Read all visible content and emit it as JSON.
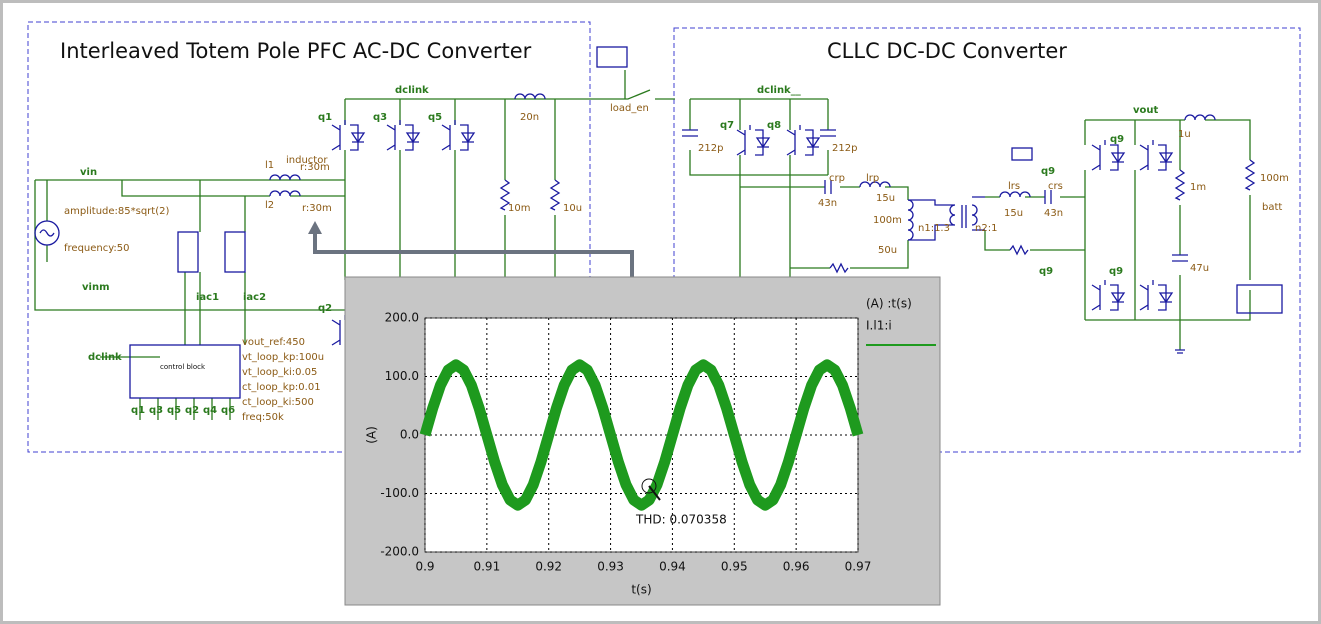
{
  "schematic": {
    "left_title": "Interleaved Totem Pole PFC AC-DC Converter",
    "right_title": "CLLC DC-DC Converter",
    "labels": [
      "dclink",
      "q1",
      "q3",
      "q5",
      "20n",
      "load_en",
      "l1",
      "inductor",
      "r:30m",
      "l2",
      "r:30m",
      "vin",
      "amplitude:85*sqrt(2)",
      "frequency:50",
      "vinm",
      "iac1",
      "iac2",
      "10m",
      "10u",
      "q2",
      "dclink",
      "vout_ref:450",
      "vt_loop_kp:100u",
      "vt_loop_ki:0.05",
      "ct_loop_kp:0.01",
      "ct_loop_ki:500",
      "freq:50k",
      "q1",
      "q3",
      "q5",
      "q2",
      "q4",
      "q6",
      "control block",
      "dclink__",
      "q7",
      "q8",
      "212p",
      "212p",
      "crp",
      "lrp",
      "43n",
      "15u",
      "100m",
      "50u",
      "n1:1.3",
      "n2:1",
      "lrs",
      "crs",
      "15u",
      "43n",
      "q9",
      "q9",
      "q9",
      "q9",
      "vout",
      "1u",
      "1m",
      "100m",
      "batt",
      "47u"
    ]
  },
  "chart_data": {
    "type": "line",
    "legend_title": "(A) :t(s)",
    "xlabel": "t(s)",
    "ylabel": "(A)",
    "annotation": "THD: 0.070358",
    "x": [
      0.9,
      0.90125,
      0.9025,
      0.90375,
      0.905,
      0.90625,
      0.9075,
      0.90875,
      0.91,
      0.91125,
      0.9125,
      0.91375,
      0.915,
      0.91625,
      0.9175,
      0.91875,
      0.92,
      0.92125,
      0.9225,
      0.92375,
      0.925,
      0.92625,
      0.9275,
      0.92875,
      0.93,
      0.93125,
      0.9325,
      0.93375,
      0.935,
      0.93625,
      0.9375,
      0.93875,
      0.94,
      0.94125,
      0.9425,
      0.94375,
      0.945,
      0.94625,
      0.9475,
      0.94875,
      0.95,
      0.95125,
      0.9525,
      0.95375,
      0.955,
      0.95625,
      0.9575,
      0.95875,
      0.96,
      0.96125,
      0.9625,
      0.96375,
      0.965,
      0.96625,
      0.9675,
      0.96875,
      0.97
    ],
    "series": [
      {
        "name": "I.l1:i",
        "color": "#1e9a1e",
        "values": [
          0,
          46,
          85,
          111,
          120,
          111,
          85,
          46,
          0,
          -46,
          -85,
          -111,
          -120,
          -111,
          -85,
          -46,
          0,
          46,
          85,
          111,
          120,
          111,
          85,
          46,
          0,
          -46,
          -85,
          -111,
          -120,
          -111,
          -85,
          -46,
          0,
          46,
          85,
          111,
          120,
          111,
          85,
          46,
          0,
          -46,
          -85,
          -111,
          -120,
          -111,
          -85,
          -46,
          0,
          46,
          85,
          111,
          120,
          111,
          85,
          46,
          0
        ]
      }
    ],
    "xlim": [
      0.9,
      0.97
    ],
    "xticks": [
      0.9,
      0.91,
      0.92,
      0.93,
      0.94,
      0.95,
      0.96,
      0.97
    ],
    "ylim": [
      -200,
      200
    ],
    "yticks": [
      {
        "value": 200,
        "label": "200.0"
      },
      {
        "value": 100,
        "label": "100.0"
      },
      {
        "value": 0,
        "label": "0.0"
      },
      {
        "value": -100,
        "label": "-100.0"
      },
      {
        "value": -200,
        "label": "-200.0"
      }
    ],
    "grid": true
  }
}
